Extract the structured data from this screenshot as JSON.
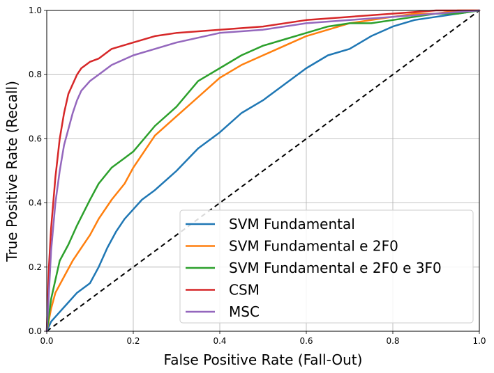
{
  "chart_data": {
    "type": "line",
    "title": "",
    "xlabel": "False Positive Rate (Fall-Out)",
    "ylabel": "True Positive Rate (Recall)",
    "xlim": [
      0,
      1
    ],
    "ylim": [
      0,
      1
    ],
    "xticks": [
      "0.0",
      "0.2",
      "0.4",
      "0.6",
      "0.8",
      "1.0"
    ],
    "yticks": [
      "0.0",
      "0.2",
      "0.4",
      "0.6",
      "0.8",
      "1.0"
    ],
    "grid": true,
    "legend_position": "lower-right",
    "reference_line": {
      "x": [
        0,
        1
      ],
      "y": [
        0,
        1
      ],
      "style": "dashed",
      "color": "#000000"
    },
    "series": [
      {
        "name": "SVM Fundamental",
        "color": "#1f77b4",
        "x": [
          0,
          0.01,
          0.03,
          0.05,
          0.07,
          0.1,
          0.12,
          0.14,
          0.16,
          0.18,
          0.2,
          0.22,
          0.25,
          0.3,
          0.35,
          0.4,
          0.45,
          0.5,
          0.55,
          0.6,
          0.65,
          0.7,
          0.75,
          0.8,
          0.85,
          0.9,
          0.95,
          1.0
        ],
        "y": [
          0,
          0.03,
          0.06,
          0.09,
          0.12,
          0.15,
          0.2,
          0.26,
          0.31,
          0.35,
          0.38,
          0.41,
          0.44,
          0.5,
          0.57,
          0.62,
          0.68,
          0.72,
          0.77,
          0.82,
          0.86,
          0.88,
          0.92,
          0.95,
          0.97,
          0.98,
          0.99,
          1.0
        ]
      },
      {
        "name": "SVM Fundamental e 2F0",
        "color": "#ff7f0e",
        "x": [
          0,
          0.01,
          0.02,
          0.04,
          0.06,
          0.08,
          0.1,
          0.12,
          0.15,
          0.18,
          0.2,
          0.25,
          0.3,
          0.35,
          0.4,
          0.45,
          0.5,
          0.55,
          0.6,
          0.65,
          0.7,
          0.75,
          0.8,
          0.85,
          0.9,
          0.95,
          1.0
        ],
        "y": [
          0,
          0.07,
          0.12,
          0.17,
          0.22,
          0.26,
          0.3,
          0.35,
          0.41,
          0.46,
          0.51,
          0.61,
          0.67,
          0.73,
          0.79,
          0.83,
          0.86,
          0.89,
          0.92,
          0.94,
          0.96,
          0.97,
          0.98,
          0.99,
          0.99,
          1.0,
          1.0
        ]
      },
      {
        "name": "SVM Fundamental e 2F0 e 3F0",
        "color": "#2ca02c",
        "x": [
          0,
          0.01,
          0.02,
          0.03,
          0.05,
          0.07,
          0.1,
          0.12,
          0.15,
          0.18,
          0.2,
          0.25,
          0.3,
          0.35,
          0.4,
          0.45,
          0.5,
          0.55,
          0.6,
          0.65,
          0.7,
          0.75,
          0.8,
          0.85,
          0.9,
          0.95,
          1.0
        ],
        "y": [
          0,
          0.1,
          0.16,
          0.22,
          0.27,
          0.33,
          0.41,
          0.46,
          0.51,
          0.54,
          0.56,
          0.64,
          0.7,
          0.78,
          0.82,
          0.86,
          0.89,
          0.91,
          0.93,
          0.95,
          0.96,
          0.96,
          0.97,
          0.98,
          0.99,
          0.99,
          1.0
        ]
      },
      {
        "name": "CSM",
        "color": "#d62728",
        "x": [
          0,
          0.005,
          0.01,
          0.02,
          0.03,
          0.04,
          0.05,
          0.06,
          0.07,
          0.08,
          0.1,
          0.12,
          0.15,
          0.2,
          0.25,
          0.3,
          0.4,
          0.5,
          0.6,
          0.7,
          0.8,
          0.9,
          1.0
        ],
        "y": [
          0,
          0.2,
          0.32,
          0.48,
          0.6,
          0.68,
          0.74,
          0.77,
          0.8,
          0.82,
          0.84,
          0.85,
          0.88,
          0.9,
          0.92,
          0.93,
          0.94,
          0.95,
          0.97,
          0.98,
          0.99,
          1.0,
          1.0
        ]
      },
      {
        "name": "MSC",
        "color": "#9467bd",
        "x": [
          0,
          0.005,
          0.01,
          0.02,
          0.03,
          0.04,
          0.05,
          0.06,
          0.07,
          0.08,
          0.1,
          0.12,
          0.15,
          0.2,
          0.25,
          0.3,
          0.4,
          0.5,
          0.6,
          0.7,
          0.8,
          0.9,
          1.0
        ],
        "y": [
          0,
          0.12,
          0.25,
          0.4,
          0.5,
          0.58,
          0.63,
          0.68,
          0.72,
          0.75,
          0.78,
          0.8,
          0.83,
          0.86,
          0.88,
          0.9,
          0.93,
          0.94,
          0.96,
          0.97,
          0.98,
          0.99,
          1.0
        ]
      }
    ]
  }
}
